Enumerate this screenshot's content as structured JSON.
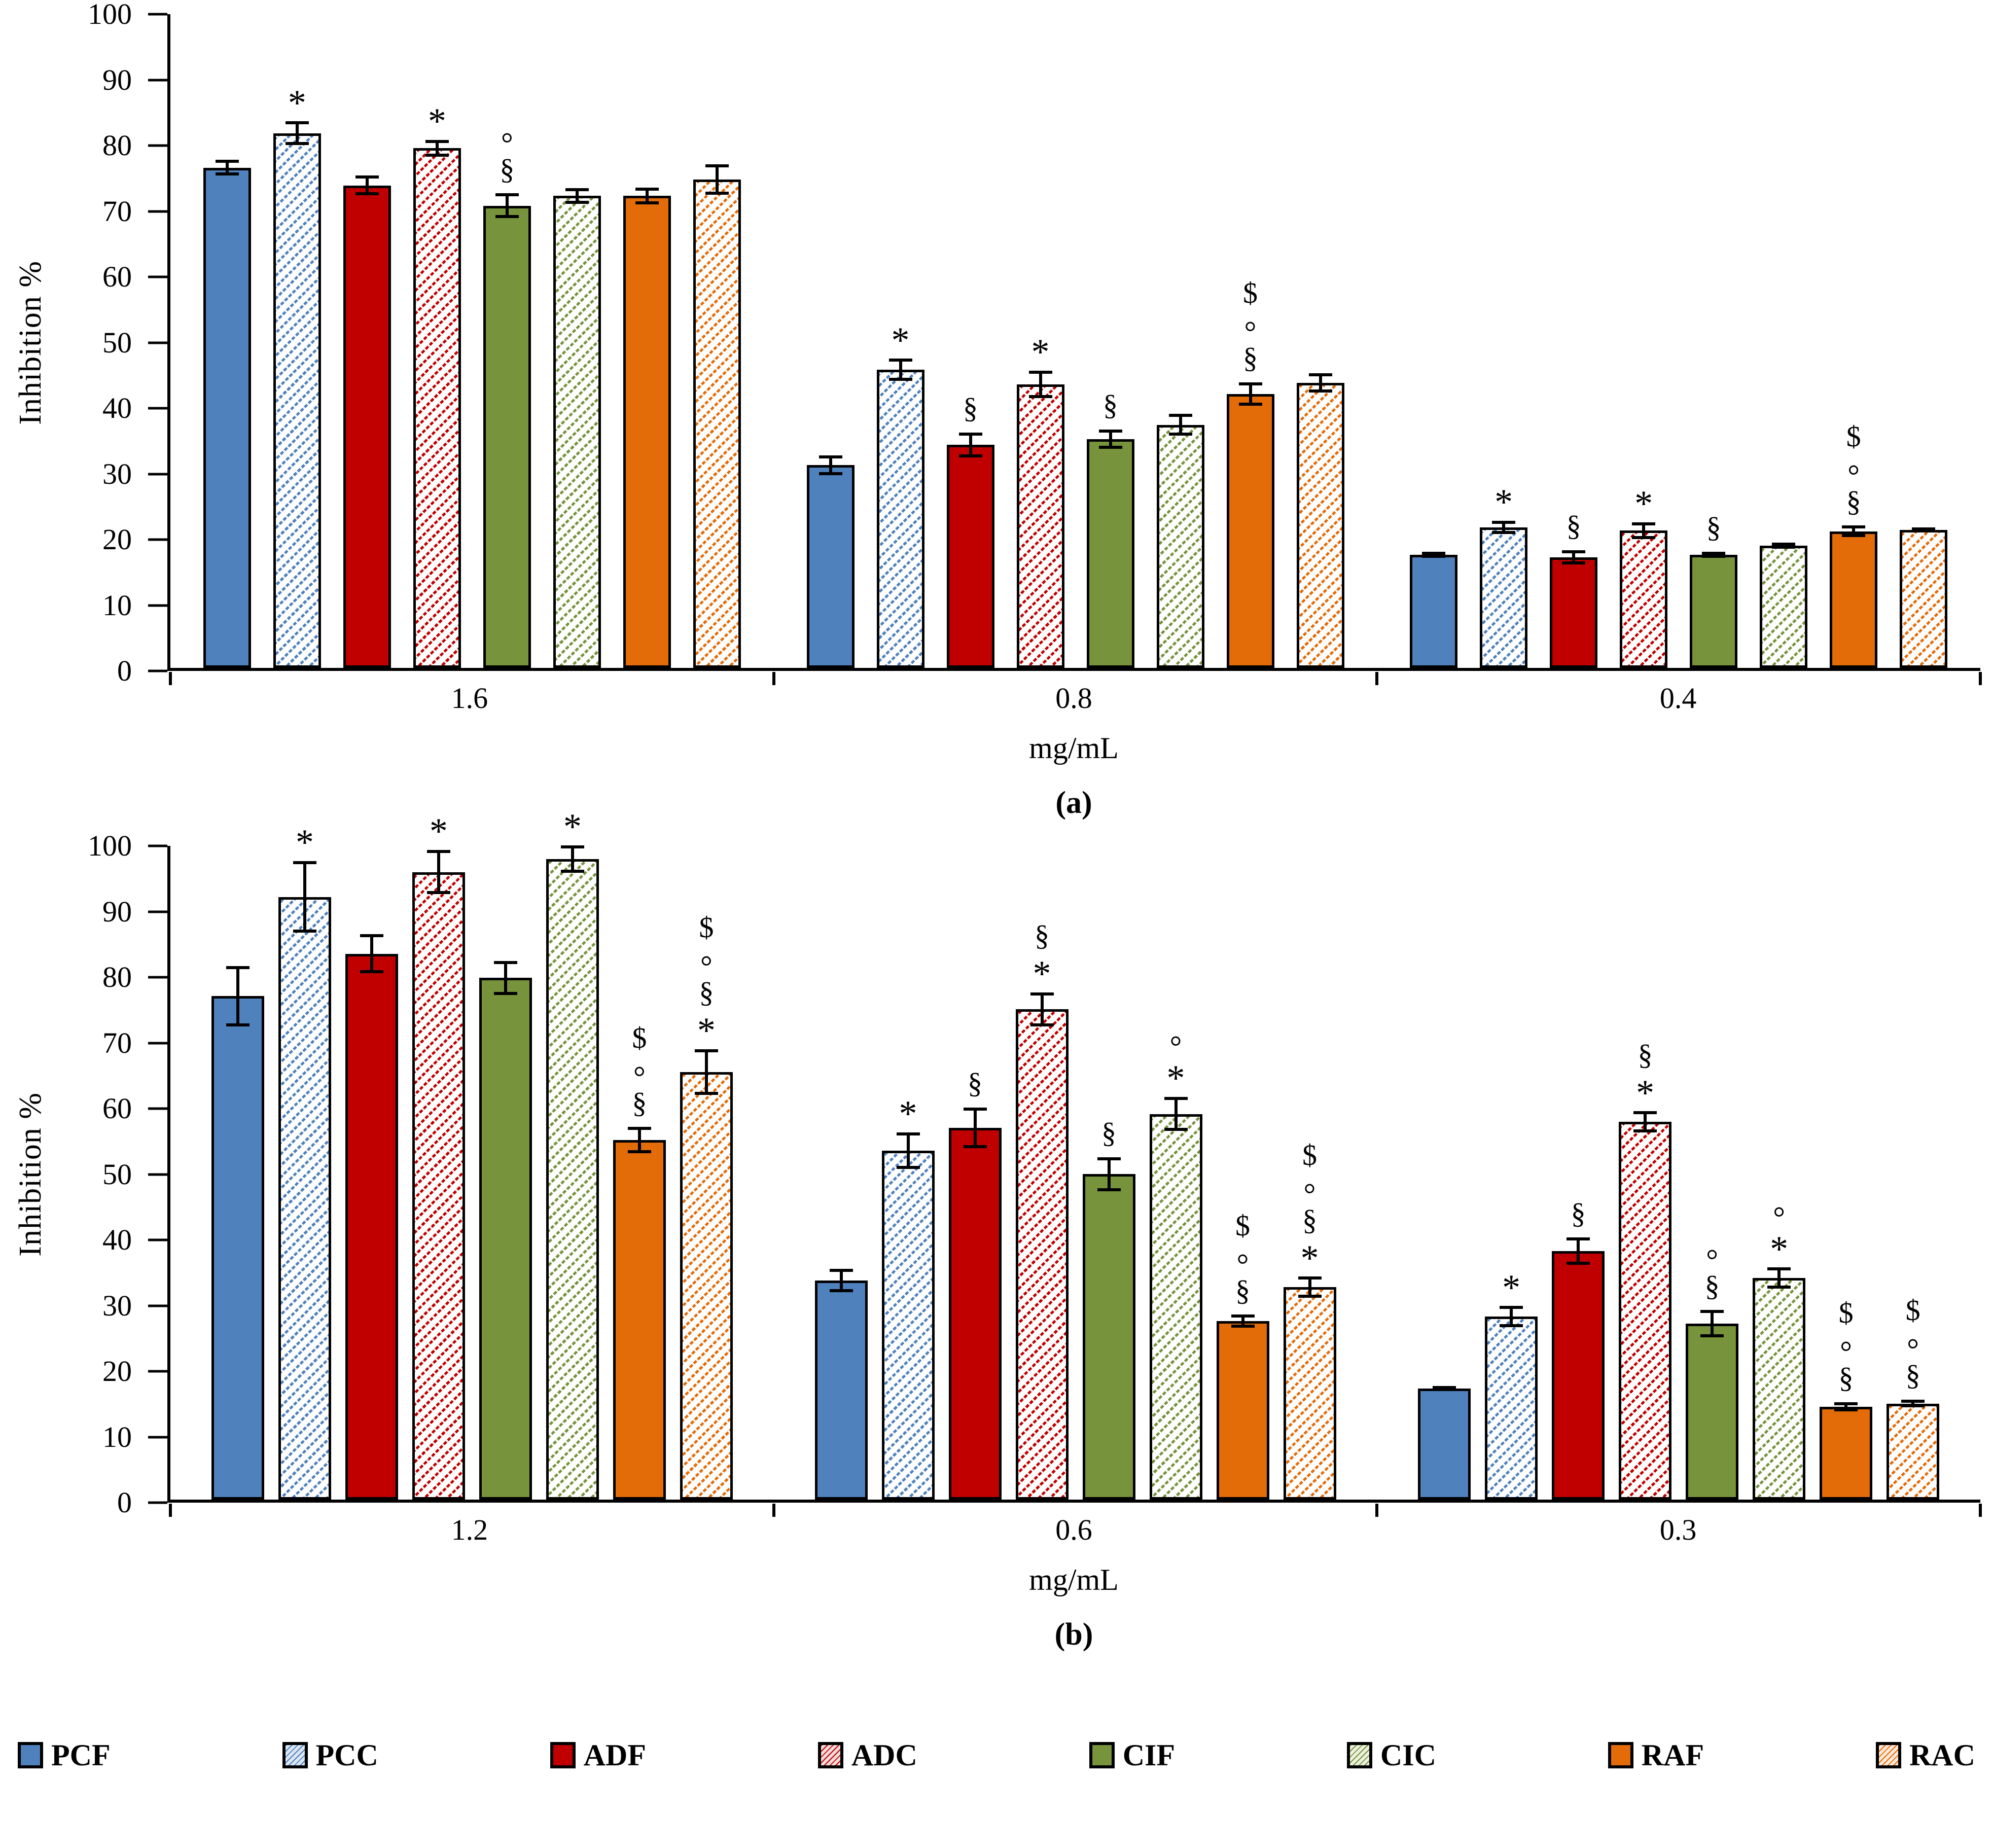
{
  "figure": {
    "panel_captions": [
      "(a)",
      "(b)"
    ]
  },
  "legend": {
    "items": [
      {
        "label": "PCF",
        "pattern": "solid",
        "color": "#4F81BD",
        "fill": "#4F81BD"
      },
      {
        "label": "PCC",
        "pattern": "hatch",
        "color": "#4F81BD",
        "fill": "#DCE6F2"
      },
      {
        "label": "ADF",
        "pattern": "solid",
        "color": "#C00000",
        "fill": "#C00000"
      },
      {
        "label": "ADC",
        "pattern": "hatch",
        "color": "#C00000",
        "fill": "#F2DCDB"
      },
      {
        "label": "CIF",
        "pattern": "solid",
        "color": "#77933C",
        "fill": "#77933C"
      },
      {
        "label": "CIC",
        "pattern": "hatch",
        "color": "#77933C",
        "fill": "#EBF1DE"
      },
      {
        "label": "RAF",
        "pattern": "solid",
        "color": "#E36C09",
        "fill": "#E36C09"
      },
      {
        "label": "RAC",
        "pattern": "hatch",
        "color": "#E36C09",
        "fill": "#FDE9D9"
      }
    ]
  },
  "chart_data": [
    {
      "type": "bar",
      "panel": "a",
      "caption": "(a)",
      "ylabel": "Inhibition %",
      "xlabel": "mg/mL",
      "ylim": [
        0,
        100
      ],
      "yticks": [
        0,
        10,
        20,
        30,
        40,
        50,
        60,
        70,
        80,
        90,
        100
      ],
      "grid": false,
      "legend_position": "bottom",
      "categories": [
        "1.6",
        "0.8",
        "0.4"
      ],
      "series": [
        {
          "name": "PCF",
          "pattern": "solid",
          "color": "#4F81BD",
          "values": [
            76.5,
            31.0,
            17.3
          ],
          "errors": [
            1.2,
            1.5,
            0.5
          ],
          "annotations": [
            [],
            [],
            []
          ]
        },
        {
          "name": "PCC",
          "pattern": "hatch",
          "color": "#4F81BD",
          "values": [
            81.8,
            45.6,
            21.5
          ],
          "errors": [
            1.8,
            1.7,
            1.0
          ],
          "annotations": [
            [
              "*"
            ],
            [
              "*"
            ],
            [
              "*"
            ]
          ]
        },
        {
          "name": "ADF",
          "pattern": "solid",
          "color": "#C00000",
          "values": [
            73.8,
            34.1,
            16.9
          ],
          "errors": [
            1.5,
            1.9,
            1.1
          ],
          "annotations": [
            [],
            [
              "§"
            ],
            [
              "§"
            ]
          ]
        },
        {
          "name": "ADC",
          "pattern": "hatch",
          "color": "#C00000",
          "values": [
            79.5,
            43.4,
            21.0
          ],
          "errors": [
            1.3,
            2.1,
            1.3
          ],
          "annotations": [
            [
              "*"
            ],
            [
              "*"
            ],
            [
              "*"
            ]
          ]
        },
        {
          "name": "CIF",
          "pattern": "solid",
          "color": "#77933C",
          "values": [
            70.7,
            35.0,
            17.3
          ],
          "errors": [
            1.9,
            1.5,
            0.5
          ],
          "annotations": [
            [
              "°",
              "§"
            ],
            [
              "§"
            ],
            [
              "§"
            ]
          ]
        },
        {
          "name": "CIC",
          "pattern": "hatch",
          "color": "#77933C",
          "values": [
            72.2,
            37.2,
            18.7
          ],
          "errors": [
            1.2,
            1.7,
            0.5
          ],
          "annotations": [
            [],
            [],
            []
          ]
        },
        {
          "name": "RAF",
          "pattern": "solid",
          "color": "#E36C09",
          "values": [
            72.2,
            41.9,
            20.9
          ],
          "errors": [
            1.3,
            1.8,
            0.9
          ],
          "annotations": [
            [],
            [
              "$",
              "°",
              "§"
            ],
            [
              "$",
              "°",
              "§"
            ]
          ]
        },
        {
          "name": "RAC",
          "pattern": "hatch",
          "color": "#E36C09",
          "values": [
            74.7,
            43.6,
            21.1
          ],
          "errors": [
            2.3,
            1.5,
            0.4
          ],
          "annotations": [
            [],
            [],
            []
          ]
        }
      ]
    },
    {
      "type": "bar",
      "panel": "b",
      "caption": "(b)",
      "ylabel": "Inhibition %",
      "xlabel": "mg/mL",
      "ylim": [
        0,
        100
      ],
      "yticks": [
        0,
        10,
        20,
        30,
        40,
        50,
        60,
        70,
        80,
        90,
        100
      ],
      "grid": false,
      "legend_position": "bottom",
      "categories": [
        "1.2",
        "0.6",
        "0.3"
      ],
      "series": [
        {
          "name": "PCF",
          "pattern": "solid",
          "color": "#4F81BD",
          "values": [
            77.0,
            33.5,
            17.0
          ],
          "errors": [
            4.6,
            1.8,
            0.4
          ],
          "annotations": [
            [],
            [],
            []
          ]
        },
        {
          "name": "PCC",
          "pattern": "hatch",
          "color": "#4F81BD",
          "values": [
            92.2,
            53.4,
            28.0
          ],
          "errors": [
            5.5,
            2.8,
            1.6
          ],
          "annotations": [
            [
              "*"
            ],
            [
              "*"
            ],
            [
              "*"
            ]
          ]
        },
        {
          "name": "ADF",
          "pattern": "solid",
          "color": "#C00000",
          "values": [
            83.5,
            56.9,
            38.0
          ],
          "errors": [
            3.0,
            3.1,
            2.1
          ],
          "annotations": [
            [],
            [
              "§"
            ],
            [
              "§"
            ]
          ]
        },
        {
          "name": "ADC",
          "pattern": "hatch",
          "color": "#C00000",
          "values": [
            96.0,
            75.0,
            57.8
          ],
          "errors": [
            3.4,
            2.6,
            1.6
          ],
          "annotations": [
            [
              "*"
            ],
            [
              "§",
              "*"
            ],
            [
              "§",
              "*"
            ]
          ]
        },
        {
          "name": "CIF",
          "pattern": "solid",
          "color": "#77933C",
          "values": [
            79.8,
            49.8,
            26.9
          ],
          "errors": [
            2.6,
            2.6,
            2.1
          ],
          "annotations": [
            [],
            [
              "§"
            ],
            [
              "°",
              "§"
            ]
          ]
        },
        {
          "name": "CIC",
          "pattern": "hatch",
          "color": "#77933C",
          "values": [
            98.0,
            59.0,
            33.9
          ],
          "errors": [
            2.1,
            2.6,
            1.6
          ],
          "annotations": [
            [
              "*"
            ],
            [
              "°",
              "*"
            ],
            [
              "°",
              "*"
            ]
          ]
        },
        {
          "name": "RAF",
          "pattern": "solid",
          "color": "#E36C09",
          "values": [
            55.0,
            27.3,
            14.2
          ],
          "errors": [
            2.0,
            1.0,
            0.7
          ],
          "annotations": [
            [
              "$",
              "°",
              "§"
            ],
            [
              "$",
              "°",
              "§"
            ],
            [
              "$",
              "°",
              "§"
            ]
          ]
        },
        {
          "name": "RAC",
          "pattern": "hatch",
          "color": "#E36C09",
          "values": [
            65.4,
            32.5,
            14.7
          ],
          "errors": [
            3.5,
            1.6,
            0.6
          ],
          "annotations": [
            [
              "$",
              "°",
              "§",
              "*"
            ],
            [
              "$",
              "°",
              "§",
              "*"
            ],
            [
              "$",
              "°",
              "§"
            ]
          ]
        }
      ]
    }
  ]
}
